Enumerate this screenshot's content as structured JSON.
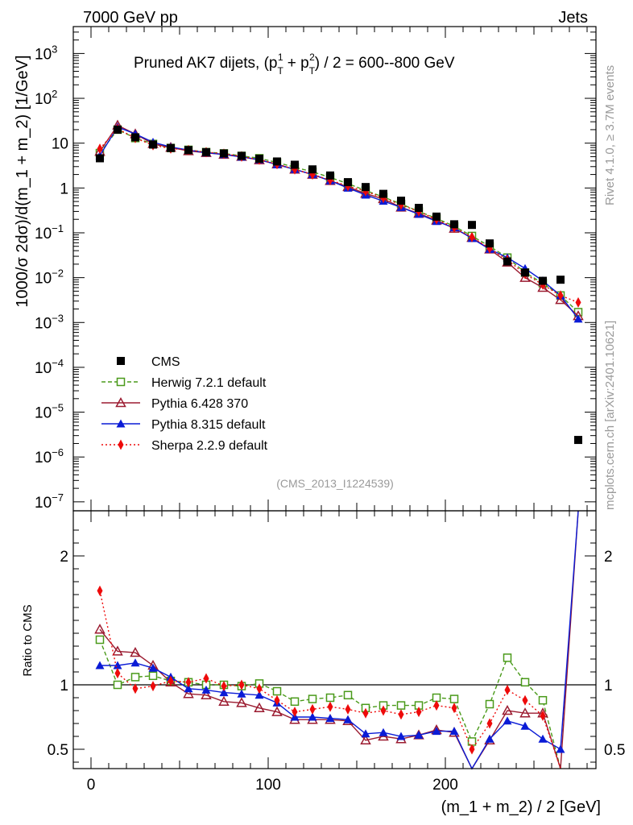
{
  "header": {
    "left": "7000 GeV pp",
    "right": "Jets"
  },
  "side": {
    "rivet": "Rivet 4.1.0, ≥ 3.7M events",
    "mcplots": "mcplots.cern.ch [arXiv:2401.10621]"
  },
  "chart_data": {
    "type": "scatter",
    "title_prefix": "Pruned AK7 dijets, (p",
    "title_sub1": "T",
    "title_sup1": "1",
    "title_mid": " + p",
    "title_sub2": "T",
    "title_sup2": "2",
    "title_suffix": ") / 2 = 600--800 GeV",
    "analysis_tag": "(CMS_2013_I1224539)",
    "ylabel_main": "1000/σ  2dσ)/d(m_1 + m_2) [1/GeV]",
    "ylabel_ratio": "Ratio to CMS",
    "xlabel": "(m_1 + m_2) / 2 [GeV]",
    "xlim": [
      -10,
      285
    ],
    "ylim_main_log10": [
      -7.2,
      3.6
    ],
    "ylim_ratio": [
      0.35,
      2.35
    ],
    "x_ticks": [
      "0",
      "100",
      "200"
    ],
    "x_tick_values": [
      0,
      100,
      200
    ],
    "y_ticks_main": [
      {
        "exp": 3,
        "label": "10",
        "sup": "3"
      },
      {
        "exp": 2,
        "label": "10",
        "sup": "2"
      },
      {
        "exp": 1,
        "label": "10",
        "sup": ""
      },
      {
        "exp": 0,
        "label": "1",
        "sup": ""
      },
      {
        "exp": -1,
        "label": "10",
        "sup": "−1"
      },
      {
        "exp": -2,
        "label": "10",
        "sup": "−2"
      },
      {
        "exp": -3,
        "label": "10",
        "sup": "−3"
      },
      {
        "exp": -4,
        "label": "10",
        "sup": "−4"
      },
      {
        "exp": -5,
        "label": "10",
        "sup": "−5"
      },
      {
        "exp": -6,
        "label": "10",
        "sup": "−6"
      },
      {
        "exp": -7,
        "label": "10",
        "sup": "−7"
      }
    ],
    "y_ticks_ratio": [
      {
        "value": 0.5,
        "label": "0.5"
      },
      {
        "value": 1,
        "label": "1"
      },
      {
        "value": 2,
        "label": "2"
      }
    ],
    "x": [
      5,
      15,
      25,
      35,
      45,
      55,
      65,
      75,
      85,
      95,
      105,
      115,
      125,
      135,
      145,
      155,
      165,
      175,
      185,
      195,
      205,
      215,
      225,
      235,
      245,
      255,
      265,
      275
    ],
    "cms": [
      4.6,
      20,
      13.5,
      9.3,
      7.8,
      7.0,
      6.3,
      5.9,
      5.2,
      4.5,
      3.9,
      3.3,
      2.6,
      1.9,
      1.35,
      1.05,
      0.74,
      0.52,
      0.36,
      0.23,
      0.155,
      0.15,
      0.058,
      0.023,
      0.013,
      0.0085,
      0.009,
      2.4e-06
    ],
    "series": [
      {
        "name": "Herwig 7.2.1 default",
        "color": "#4a9a1a",
        "marker": "open-square",
        "dash": "5,3",
        "values": [
          6.0,
          20,
          13,
          9.6,
          7.8,
          7.1,
          6.3,
          5.9,
          5.2,
          4.6,
          3.7,
          2.9,
          2.3,
          1.72,
          1.25,
          0.88,
          0.63,
          0.44,
          0.3,
          0.21,
          0.14,
          0.085,
          0.05,
          0.028,
          0.013,
          0.0075,
          0.004,
          0.0017
        ],
        "ratio": [
          1.35,
          1.0,
          1.06,
          1.07,
          1.03,
          1.02,
          1.0,
          1.0,
          0.99,
          1.01,
          0.95,
          0.87,
          0.89,
          0.9,
          0.92,
          0.82,
          0.84,
          0.84,
          0.84,
          0.9,
          0.89,
          0.56,
          0.85,
          1.21,
          1.02,
          0.88,
          0.35,
          null
        ]
      },
      {
        "name": "Pythia 6.428 370",
        "color": "#9b1b30",
        "marker": "open-triangle",
        "dash": "",
        "values": [
          6.5,
          25,
          16,
          9.7,
          8.0,
          6.7,
          6.1,
          5.6,
          5.0,
          4.2,
          3.4,
          2.6,
          2.0,
          1.45,
          1.06,
          0.75,
          0.57,
          0.37,
          0.27,
          0.19,
          0.125,
          0.078,
          0.043,
          0.022,
          0.01,
          0.006,
          0.0032,
          0.0014
        ],
        "ratio": [
          1.43,
          1.26,
          1.25,
          1.15,
          1.02,
          0.93,
          0.92,
          0.87,
          0.86,
          0.82,
          0.79,
          0.73,
          0.73,
          0.73,
          0.72,
          0.57,
          0.6,
          0.58,
          0.61,
          0.65,
          0.63,
          0.35,
          0.57,
          0.8,
          0.78,
          0.78,
          0.35,
          2.35
        ]
      },
      {
        "name": "Pythia 8.315 default",
        "color": "#0a1bd6",
        "marker": "filled-triangle",
        "dash": "",
        "values": [
          5.3,
          23,
          16,
          10.5,
          8.2,
          7.0,
          6.1,
          5.6,
          4.9,
          4.3,
          3.3,
          2.6,
          2.0,
          1.45,
          1.0,
          0.7,
          0.51,
          0.37,
          0.26,
          0.18,
          0.13,
          0.075,
          0.043,
          0.028,
          0.016,
          0.0085,
          0.004,
          0.0012
        ],
        "ratio": [
          1.15,
          1.15,
          1.17,
          1.13,
          1.06,
          0.97,
          0.96,
          0.94,
          0.93,
          0.92,
          0.86,
          0.75,
          0.75,
          0.74,
          0.73,
          0.62,
          0.63,
          0.6,
          0.61,
          0.64,
          0.64,
          0.35,
          0.58,
          0.72,
          0.68,
          0.58,
          0.5,
          2.35
        ]
      },
      {
        "name": "Sherpa 2.2.9 default",
        "color": "#ee0a0a",
        "marker": "filled-diamond",
        "dash": "2,3",
        "values": [
          7.5,
          21,
          13,
          9.0,
          7.6,
          7.0,
          6.3,
          5.8,
          5.0,
          4.3,
          3.4,
          2.6,
          2.0,
          1.5,
          1.1,
          0.85,
          0.6,
          0.42,
          0.3,
          0.2,
          0.13,
          0.08,
          0.045,
          0.025,
          0.012,
          0.007,
          0.004,
          0.0028
        ],
        "ratio": [
          1.73,
          1.09,
          0.97,
          0.99,
          1.03,
          1.02,
          1.05,
          0.99,
          1.0,
          0.97,
          0.88,
          0.79,
          0.81,
          0.83,
          0.81,
          0.78,
          0.8,
          0.77,
          0.79,
          0.84,
          0.82,
          0.5,
          0.7,
          0.96,
          0.88,
          0.76,
          0.35,
          null
        ]
      }
    ],
    "legend": {
      "data_label": "CMS",
      "position": "lower-left"
    }
  }
}
